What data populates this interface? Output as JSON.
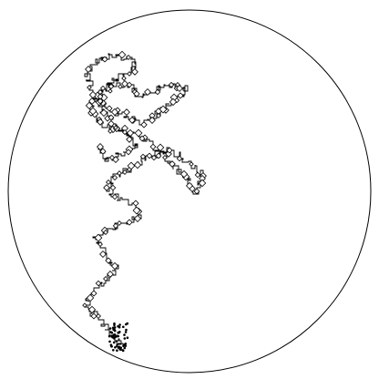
{
  "colors": {
    "background": "#ffffff",
    "stroke": "#000000"
  },
  "figure": {
    "kind": "random-walk-in-circle",
    "boundary": "circle",
    "path_style": "thin black polyline of short unit steps with small rotated squares along the walk"
  }
}
